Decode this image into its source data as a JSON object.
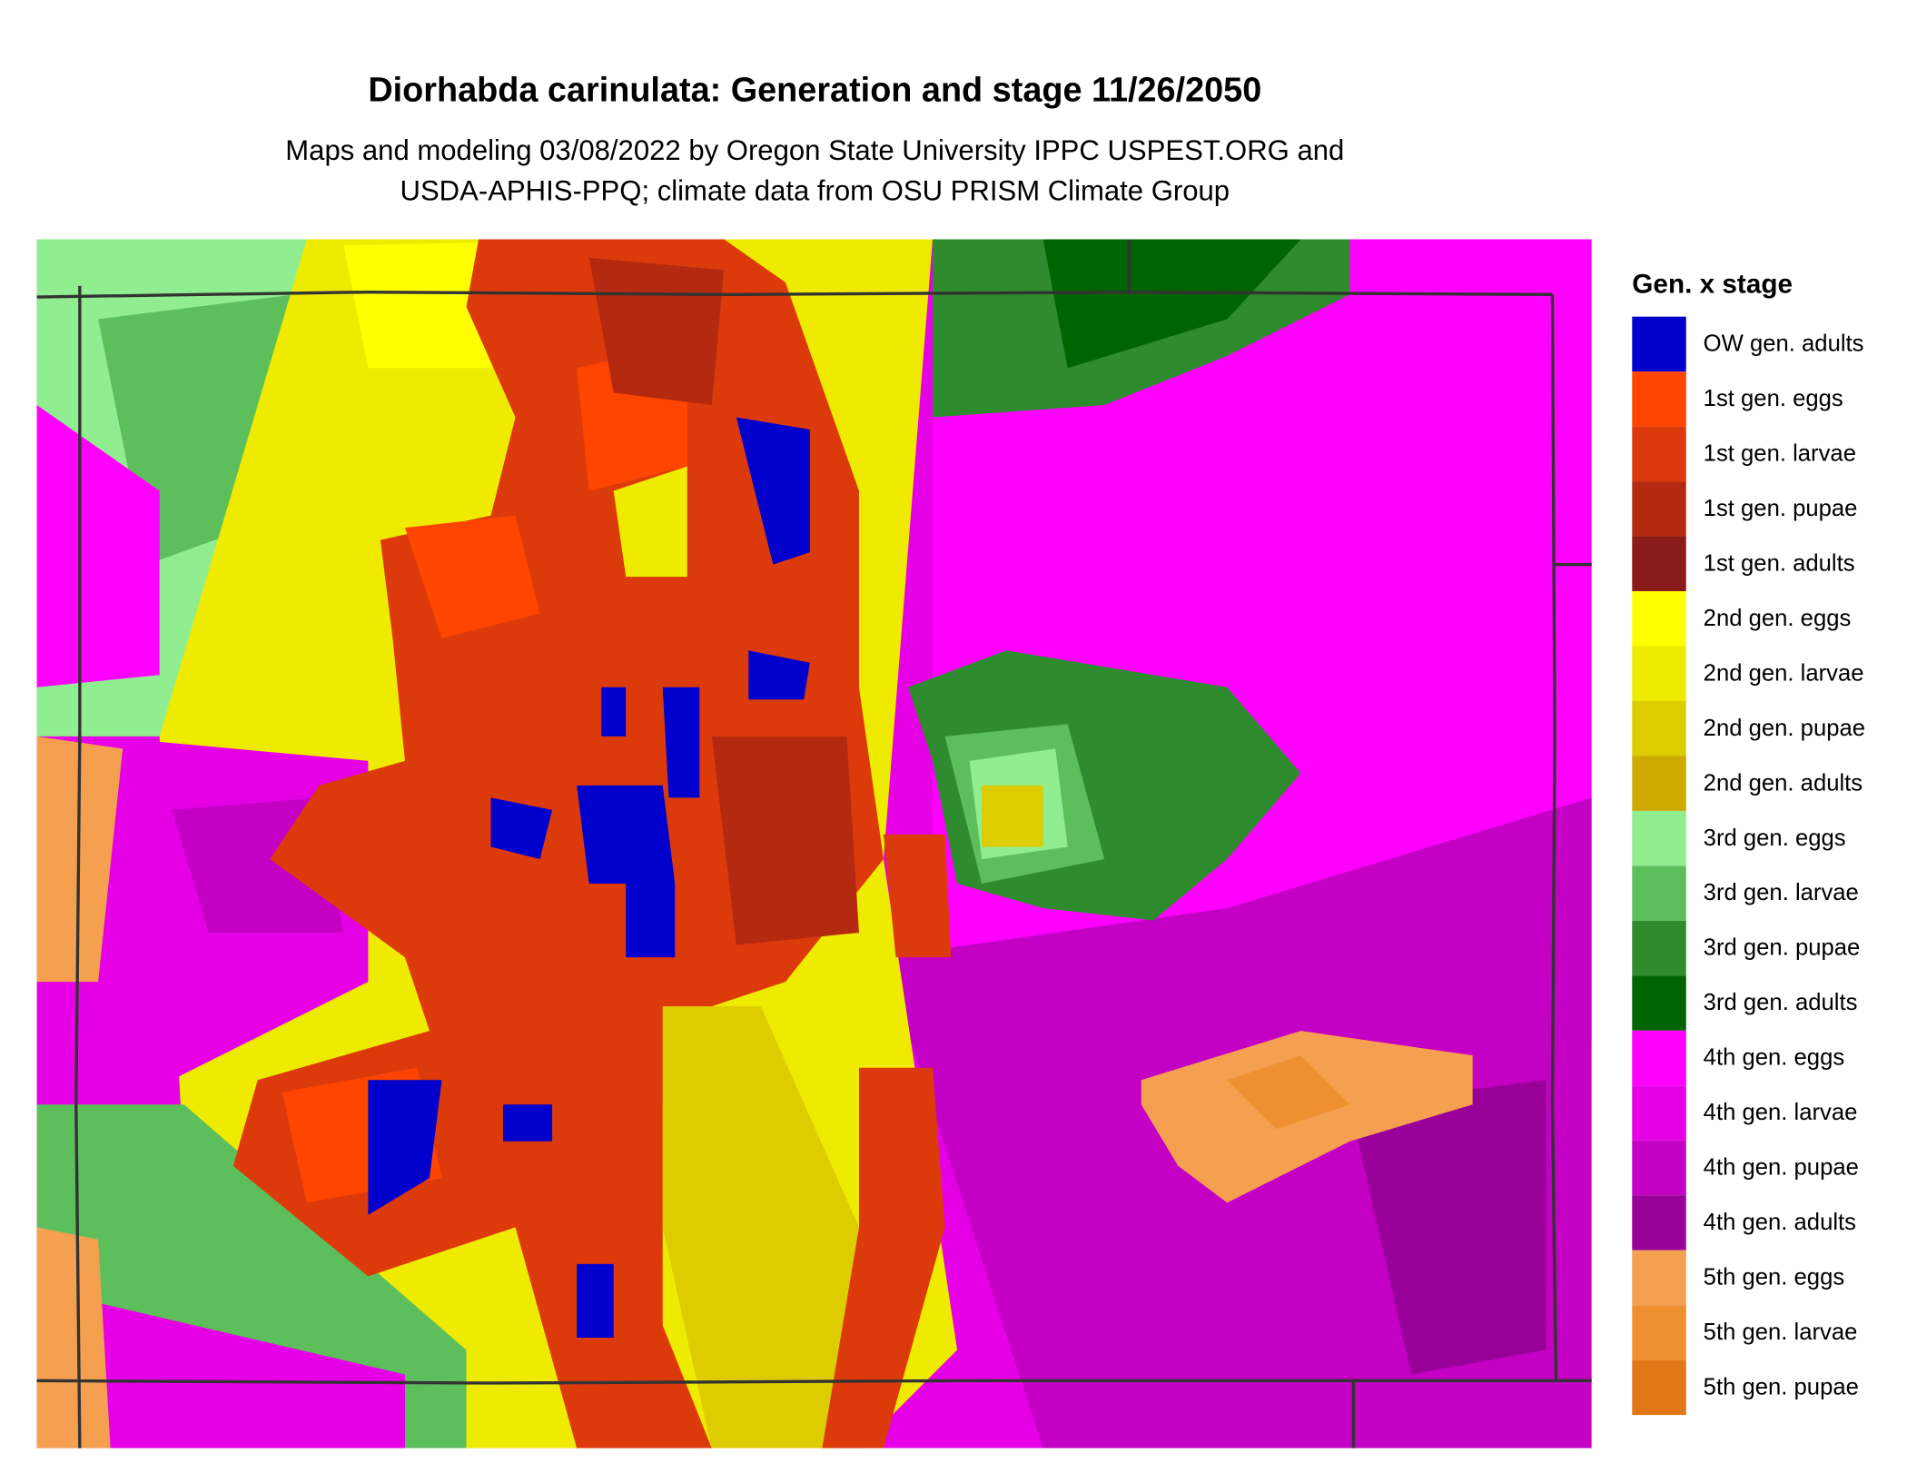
{
  "title": "Diorhabda carinulata: Generation and stage 11/26/2050",
  "subtitle": [
    "Maps and modeling 03/08/2022 by Oregon State University IPPC USPEST.ORG and",
    "USDA-APHIS-PPQ; climate data from OSU PRISM Climate Group"
  ],
  "legend": {
    "title": "Gen. x stage",
    "items": [
      {
        "label": "OW gen. adults",
        "color": "#0000cc"
      },
      {
        "label": "1st gen. eggs",
        "color": "#ff4500"
      },
      {
        "label": "1st gen. larvae",
        "color": "#dd3a0c"
      },
      {
        "label": "1st gen. pupae",
        "color": "#b42a10"
      },
      {
        "label": "1st gen. adults",
        "color": "#8b1a1a"
      },
      {
        "label": "2nd gen. eggs",
        "color": "#ffff00"
      },
      {
        "label": "2nd gen. larvae",
        "color": "#eeea00"
      },
      {
        "label": "2nd gen. pupae",
        "color": "#ddcc00"
      },
      {
        "label": "2nd gen. adults",
        "color": "#ccaa00"
      },
      {
        "label": "3rd gen. eggs",
        "color": "#90ee90"
      },
      {
        "label": "3rd gen. larvae",
        "color": "#5cbf5c"
      },
      {
        "label": "3rd gen. pupae",
        "color": "#2e8b2e"
      },
      {
        "label": "3rd gen. adults",
        "color": "#006400"
      },
      {
        "label": "4th gen. eggs",
        "color": "#ff00ff"
      },
      {
        "label": "4th gen. larvae",
        "color": "#e600e6"
      },
      {
        "label": "4th gen. pupae",
        "color": "#c400c4"
      },
      {
        "label": "4th gen. adults",
        "color": "#990099"
      },
      {
        "label": "5th gen. eggs",
        "color": "#f5a050"
      },
      {
        "label": "5th gen. larvae",
        "color": "#ee9030"
      },
      {
        "label": "5th gen. pupae",
        "color": "#e07818"
      }
    ]
  }
}
